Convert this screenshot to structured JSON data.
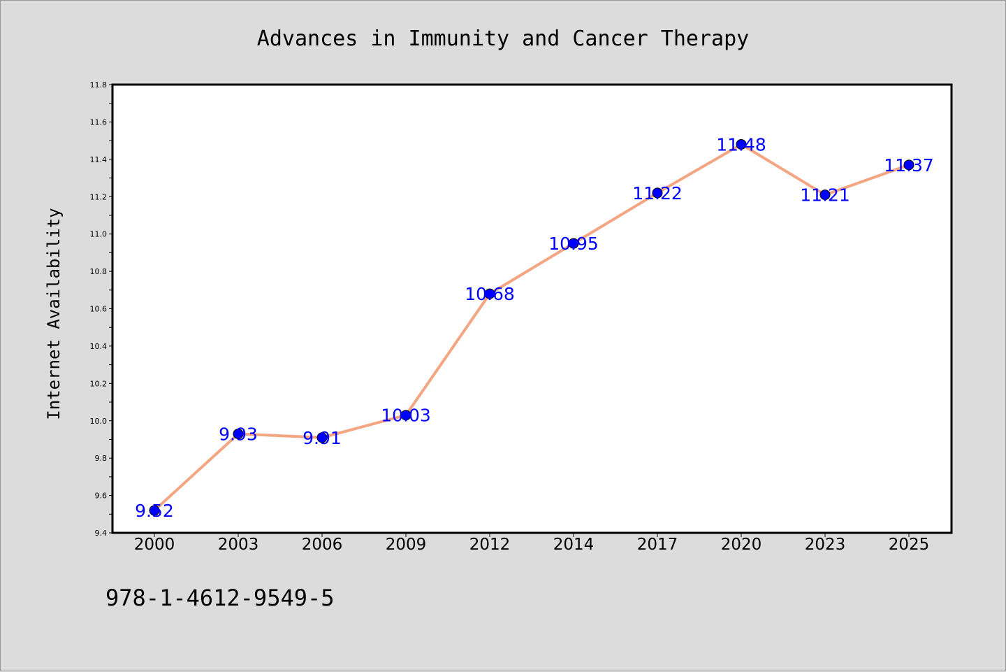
{
  "chart_data": {
    "type": "line",
    "title": "Advances in Immunity and Cancer Therapy",
    "xlabel": "",
    "ylabel": "Internet Availability",
    "categories": [
      "2000",
      "2003",
      "2006",
      "2009",
      "2012",
      "2014",
      "2017",
      "2020",
      "2023",
      "2025"
    ],
    "series": [
      {
        "values": [
          9.52,
          9.93,
          9.91,
          10.03,
          10.68,
          10.95,
          11.22,
          11.48,
          11.21,
          11.37
        ],
        "labels": [
          "9.52",
          "9.93",
          "9.91",
          "10.03",
          "10.68",
          "10.95",
          "11.22",
          "11.48",
          "11.21",
          "11.37"
        ],
        "line_color": "#f4a582",
        "marker_color": "#0000ff",
        "label_color": "#0000ff"
      }
    ],
    "ylim": [
      9.4,
      11.8
    ],
    "yticks": [
      "9.4",
      "9.6",
      "9.8",
      "10.0",
      "10.2",
      "10.4",
      "10.6",
      "10.8",
      "11.0",
      "11.2",
      "11.4",
      "11.6",
      "11.8"
    ],
    "grid": false,
    "legend": "none",
    "background_color": "#dcdcdc",
    "plot_background_color": "#ffffff"
  },
  "footer": {
    "text": "978-1-4612-9549-5"
  }
}
